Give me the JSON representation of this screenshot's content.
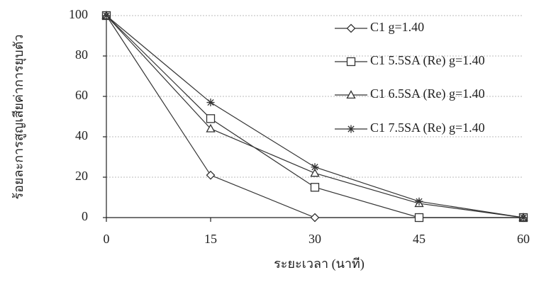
{
  "chart_data": {
    "type": "line",
    "x_label": "ระยะเวลา (นาที)",
    "y_label": "ร้อยละการสูญเสียค่าการยุบตัว",
    "x": [
      0,
      15,
      30,
      45,
      60
    ],
    "xlim": [
      0,
      60
    ],
    "xticks": [
      0,
      15,
      30,
      45,
      60
    ],
    "ylim": [
      0,
      100
    ],
    "yticks": [
      0,
      20,
      40,
      60,
      80,
      100
    ],
    "grid": true,
    "legend": "upper right",
    "series": [
      {
        "name": "C1 g=1.40",
        "color": "#333333",
        "marker": "diamond",
        "values": [
          100,
          21,
          0,
          0,
          0
        ]
      },
      {
        "name": "C1 5.5SA (Re) g=1.40",
        "color": "#333333",
        "marker": "square",
        "values": [
          100,
          49,
          15,
          0,
          0
        ]
      },
      {
        "name": "C1 6.5SA (Re) g=1.40",
        "color": "#333333",
        "marker": "triangle",
        "values": [
          100,
          44,
          22,
          7,
          0
        ]
      },
      {
        "name": "C1 7.5SA (Re) g=1.40",
        "color": "#333333",
        "marker": "star",
        "values": [
          100,
          57,
          25,
          8,
          0
        ]
      }
    ]
  }
}
